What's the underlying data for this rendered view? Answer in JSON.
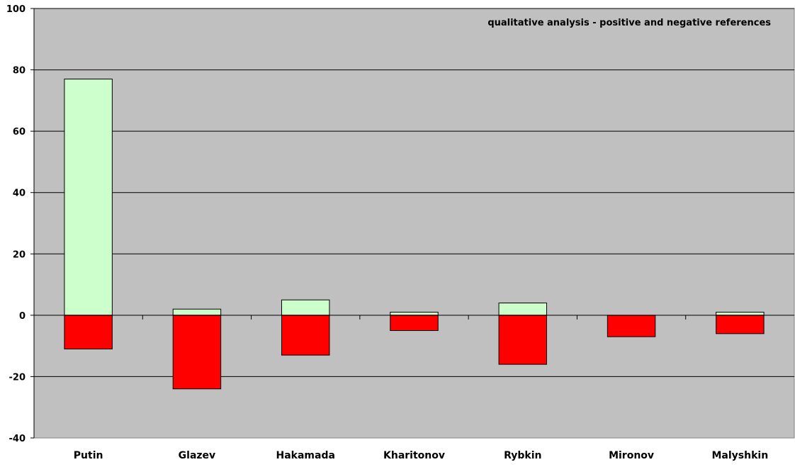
{
  "chart_data": {
    "type": "bar",
    "stacked": true,
    "title": "qualitative analysis - positive and negative references",
    "categories": [
      "Putin",
      "Glazev",
      "Hakamada",
      "Kharitonov",
      "Rybkin",
      "Mironov",
      "Malyshkin"
    ],
    "series": [
      {
        "values": [
          77,
          2,
          5,
          1,
          4,
          0,
          1
        ],
        "color": "#ccffcc"
      },
      {
        "values": [
          -11,
          -24,
          -13,
          -5,
          -16,
          -7,
          -6
        ],
        "color": "#ff0000"
      }
    ],
    "ylim": [
      -40,
      100
    ],
    "yticks": [
      -40,
      -20,
      0,
      20,
      40,
      60,
      80,
      100
    ],
    "grid": true,
    "plot_background": "#c0c0c0",
    "xlabel": "",
    "ylabel": ""
  }
}
